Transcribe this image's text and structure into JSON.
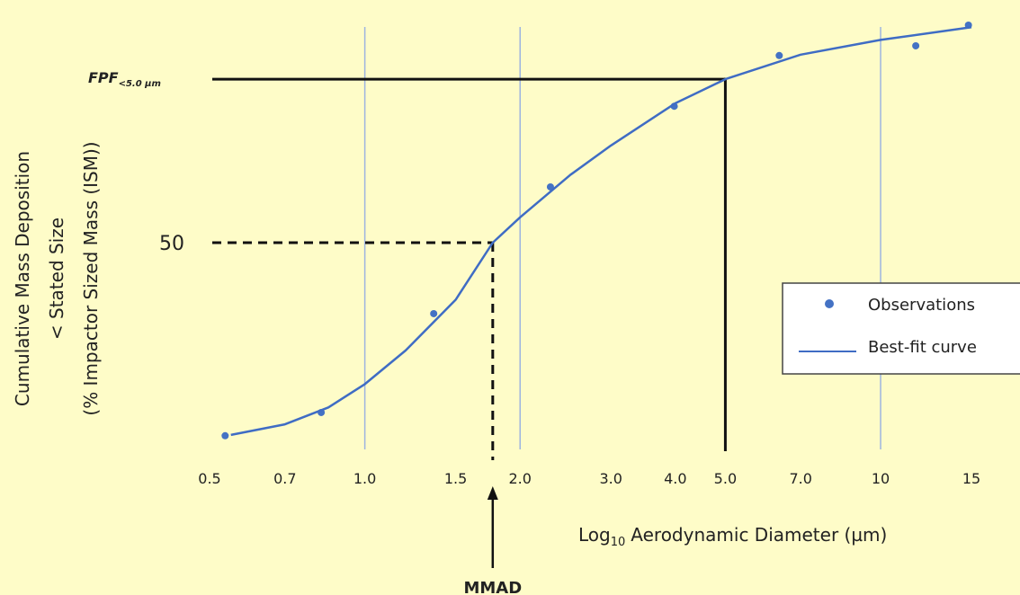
{
  "chart_data": {
    "type": "scatter",
    "x_label": {
      "text": "Log",
      "subscript": "10",
      "suffix": "Aerodynamic Diameter (µm)"
    },
    "y_label": [
      "Cumulative Mass Deposition",
      "< Stated Size",
      "(% Impactor Sized Mass (ISM))"
    ],
    "log_x": true,
    "xlim": [
      0.5,
      15
    ],
    "xticks": [
      0.5,
      0.7,
      {
        "value": 1,
        "label": "1.0"
      },
      1.5,
      {
        "value": 2,
        "label": "2.0"
      },
      {
        "value": 3,
        "label": "3.0"
      },
      {
        "value": 4,
        "label": "4.0"
      },
      {
        "value": 5,
        "label": "5.0"
      },
      {
        "value": 7,
        "label": "7.0"
      },
      10,
      15
    ],
    "xgrid": [
      1,
      2,
      10
    ],
    "ylim": [
      0,
      105
    ],
    "yticks": [
      50
    ],
    "series": [
      {
        "name": "Observations",
        "style": "points",
        "color": "#4472c4",
        "x": [
          0.536,
          0.823,
          1.36,
          2.29,
          3.98,
          6.36,
          11.7,
          14.8
        ],
        "values": [
          4.3,
          9.8,
          33.2,
          63.2,
          82.3,
          94.3,
          96.6,
          101.5
        ]
      },
      {
        "name": "Best-fit curve",
        "style": "line",
        "color": "#3f6cc4",
        "x": [
          0.55,
          0.7,
          0.85,
          1.0,
          1.2,
          1.5,
          1.77,
          2.0,
          2.5,
          3.0,
          4.0,
          5.0,
          7.0,
          10,
          15
        ],
        "values": [
          4.5,
          7.0,
          11.0,
          16.5,
          24.5,
          36.5,
          50,
          56,
          66,
          73,
          83,
          88.7,
          94.5,
          98,
          101
        ]
      }
    ],
    "legend": "right",
    "annotations": [
      {
        "text": "FPF",
        "subscript": "<5.0 µm",
        "x": 5,
        "y": 88.7,
        "style": "solid"
      },
      {
        "text": "MMAD",
        "x": 1.77,
        "y": 50,
        "style": "dashed"
      }
    ]
  }
}
